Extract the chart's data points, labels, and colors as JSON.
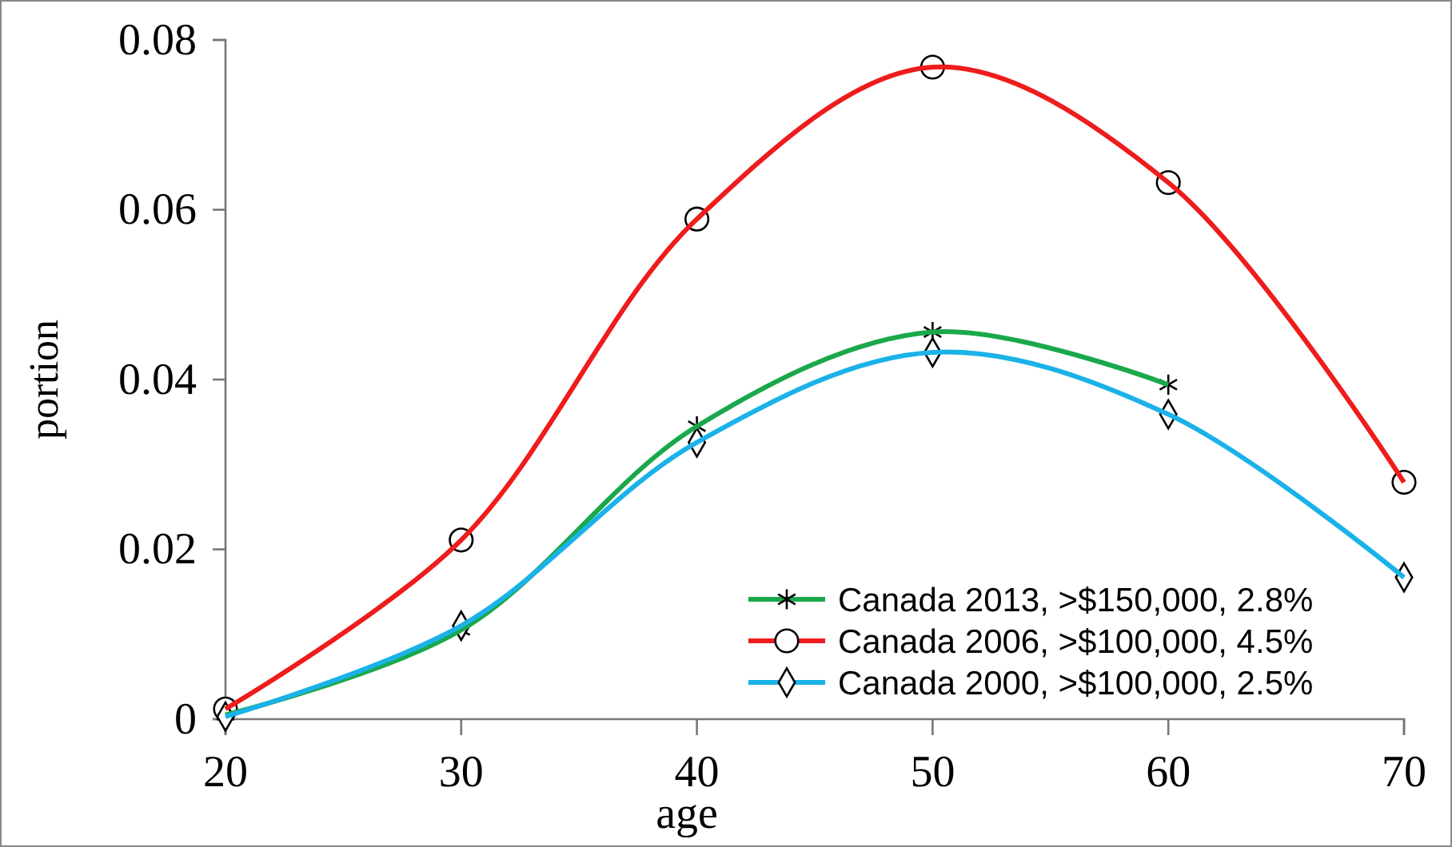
{
  "chart_data": {
    "type": "line",
    "xlabel": "age",
    "ylabel": "portion",
    "x": [
      20,
      30,
      40,
      50,
      60,
      70
    ],
    "xlim": [
      20,
      70
    ],
    "xticks": [
      20,
      30,
      40,
      50,
      60,
      70
    ],
    "ylim": [
      0,
      0.08
    ],
    "yticks": [
      0,
      0.02,
      0.04,
      0.06,
      0.08
    ],
    "grid": false,
    "legend": "bottom right",
    "line_style": "solid",
    "series": [
      {
        "name": "Canada 2013, >$150,000, 2.8%",
        "color": "#1aa84b",
        "marker": "cross",
        "values": [
          0.0005,
          0.0105,
          0.0345,
          0.0456,
          0.0394,
          null
        ]
      },
      {
        "name": "Canada 2006, >$100,000, 4.5%",
        "color": "#ee1c1c",
        "marker": "circle",
        "values": [
          0.0012,
          0.0211,
          0.0589,
          0.0768,
          0.0632,
          0.0279
        ]
      },
      {
        "name": "Canada 2000, >$100,000, 2.5%",
        "color": "#1ab2e8",
        "marker": "diamond",
        "values": [
          0.0003,
          0.011,
          0.0326,
          0.0432,
          0.0359,
          0.0167
        ]
      }
    ]
  }
}
